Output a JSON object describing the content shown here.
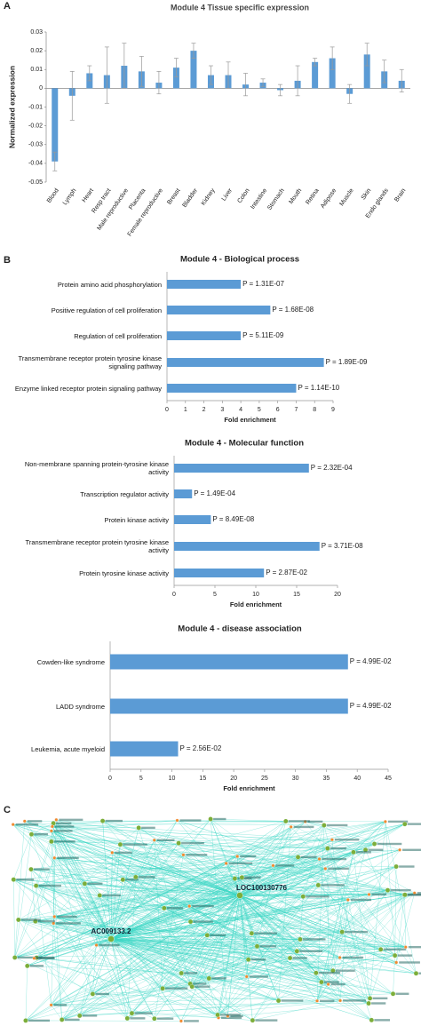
{
  "panel_labels": [
    "A",
    "B",
    "C"
  ],
  "chart_data": [
    {
      "type": "bar",
      "title": "Module 4 Tissue specific expression",
      "y_label": "Normalized expression",
      "categories": [
        "Blood",
        "Lymph",
        "Heart",
        "Resp tract",
        "Male reproductive",
        "Placenta",
        "Female reproductive",
        "Breast",
        "Bladder",
        "Kidney",
        "Liver",
        "Colon",
        "Intestine",
        "Stomach",
        "Mouth",
        "Retina",
        "Adipose",
        "Muscle",
        "Skin",
        "Endo glands",
        "Brain"
      ],
      "values": [
        -0.039,
        -0.004,
        0.008,
        0.007,
        0.012,
        0.009,
        0.003,
        0.011,
        0.02,
        0.007,
        0.007,
        0.002,
        0.003,
        -0.001,
        0.004,
        0.014,
        0.016,
        -0.003,
        0.018,
        0.009,
        0.004
      ],
      "errors": [
        0.005,
        0.013,
        0.004,
        0.015,
        0.012,
        0.008,
        0.006,
        0.005,
        0.004,
        0.005,
        0.007,
        0.006,
        0.002,
        0.003,
        0.008,
        0.002,
        0.006,
        0.005,
        0.006,
        0.006,
        0.006
      ],
      "color": "#5b9bd5",
      "ylim": [
        -0.05,
        0.03
      ],
      "yticks": [
        -0.05,
        -0.04,
        -0.03,
        -0.02,
        -0.01,
        0,
        0.01,
        0.02,
        0.03
      ]
    },
    {
      "type": "hbar",
      "title": "Module 4 - Biological process",
      "x_label": "Fold enrichment",
      "categories": [
        "Protein amino acid phosphorylation",
        "Positive regulation of cell proliferation",
        "Regulation of cell proliferation",
        "Transmembrane receptor protein tyrosine kinase signaling pathway",
        "Enzyme linked receptor protein signaling pathway"
      ],
      "values": [
        4.0,
        5.6,
        4.0,
        8.5,
        7.0
      ],
      "annotations": [
        "P = 1.31E-07",
        "P = 1.68E-08",
        "P = 5.11E-09",
        "P = 1.89E-09",
        "P = 1.14E-10"
      ],
      "color": "#5b9bd5",
      "xlim": [
        0,
        9
      ],
      "xticks": [
        0,
        1,
        2,
        3,
        4,
        5,
        6,
        7,
        8,
        9
      ]
    },
    {
      "type": "hbar",
      "title": "Module 4 - Molecular function",
      "x_label": "Fold enrichment",
      "categories": [
        "Non-membrane spanning protein-tyrosine kinase activity",
        "Transcription regulator activity",
        "Protein kinase activity",
        "Transmembrane receptor protein tyrosine kinase activity",
        "Protein tyrosine kinase activity"
      ],
      "values": [
        16.5,
        2.2,
        4.5,
        17.8,
        11
      ],
      "annotations": [
        "P = 2.32E-04",
        "P = 1.49E-04",
        "P = 8.49E-08",
        "P = 3.71E-08",
        "P = 2.87E-02"
      ],
      "color": "#5b9bd5",
      "xlim": [
        0,
        20
      ],
      "xticks": [
        0,
        5,
        10,
        15,
        20
      ]
    },
    {
      "type": "hbar",
      "title": "Module 4 - disease association",
      "x_label": "Fold enrichment",
      "categories": [
        "Cowden-like syndrome",
        "LADD syndrome",
        "Leukemia, acute myeloid"
      ],
      "values": [
        38.5,
        38.5,
        11
      ],
      "annotations": [
        "P = 4.99E-02",
        "P = 4.99E-02",
        "P = 2.56E-02"
      ],
      "color": "#5b9bd5",
      "xlim": [
        0,
        45
      ],
      "xticks": [
        0,
        5,
        10,
        15,
        20,
        25,
        30,
        35,
        40,
        45
      ]
    }
  ],
  "network": {
    "hub_labels": [
      "LOC100130776",
      "AC009133.2"
    ]
  }
}
